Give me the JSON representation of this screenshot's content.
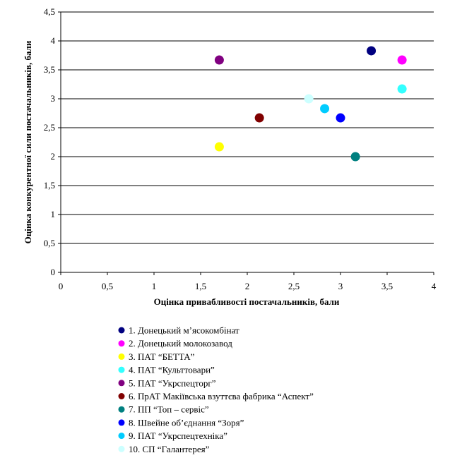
{
  "chart_data": {
    "type": "scatter",
    "xlabel": "Оцінка привабливості постачальників, бали",
    "ylabel": "Оцінка конкурентної сили постачальників, бали",
    "xlim": [
      0,
      4
    ],
    "ylim": [
      0,
      4.5
    ],
    "x_ticks": [
      {
        "value": 0,
        "label": "0"
      },
      {
        "value": 0.5,
        "label": "0,5"
      },
      {
        "value": 1,
        "label": "1"
      },
      {
        "value": 1.5,
        "label": "1,5"
      },
      {
        "value": 2,
        "label": "2"
      },
      {
        "value": 2.5,
        "label": "2,5"
      },
      {
        "value": 3,
        "label": "3"
      },
      {
        "value": 3.5,
        "label": "3,5"
      },
      {
        "value": 4,
        "label": "4"
      }
    ],
    "y_ticks": [
      {
        "value": 0,
        "label": "0"
      },
      {
        "value": 0.5,
        "label": "0,5"
      },
      {
        "value": 1,
        "label": "1"
      },
      {
        "value": 1.5,
        "label": "1,5"
      },
      {
        "value": 2,
        "label": "2"
      },
      {
        "value": 2.5,
        "label": "2,5"
      },
      {
        "value": 3,
        "label": "3"
      },
      {
        "value": 3.5,
        "label": "3,5"
      },
      {
        "value": 4,
        "label": "4"
      },
      {
        "value": 4.5,
        "label": "4,5"
      }
    ],
    "grid": "horizontal",
    "legend_position": "bottom",
    "series": [
      {
        "name": "1. Донецький м’ясокомбінат",
        "color": "#000080",
        "x": 3.33,
        "y": 3.83
      },
      {
        "name": "2. Донецький молокозавод",
        "color": "#ff00ff",
        "x": 3.66,
        "y": 3.67
      },
      {
        "name": "3. ПАТ “БЕТТА”",
        "color": "#ffff00",
        "x": 1.7,
        "y": 2.17
      },
      {
        "name": "4. ПАТ “Культтовари”",
        "color": "#33ffff",
        "x": 3.66,
        "y": 3.17
      },
      {
        "name": "5. ПАТ “Укрспецторг”",
        "color": "#800080",
        "x": 1.7,
        "y": 3.67
      },
      {
        "name": "6. ПрАТ Макіївська взуттєва фабрика “Аспект”",
        "color": "#800000",
        "x": 2.13,
        "y": 2.67
      },
      {
        "name": "7. ПП “Топ – сервіс”",
        "color": "#008080",
        "x": 3.16,
        "y": 2.0
      },
      {
        "name": "8. Швейне об’єднання “Зоря”",
        "color": "#0000ff",
        "x": 3.0,
        "y": 2.67
      },
      {
        "name": "9. ПАТ “Укрспецтехніка”",
        "color": "#00ccff",
        "x": 2.83,
        "y": 2.83
      },
      {
        "name": "10. СП “Галантерея”",
        "color": "#ccffff",
        "x": 2.66,
        "y": 3.0
      }
    ]
  }
}
